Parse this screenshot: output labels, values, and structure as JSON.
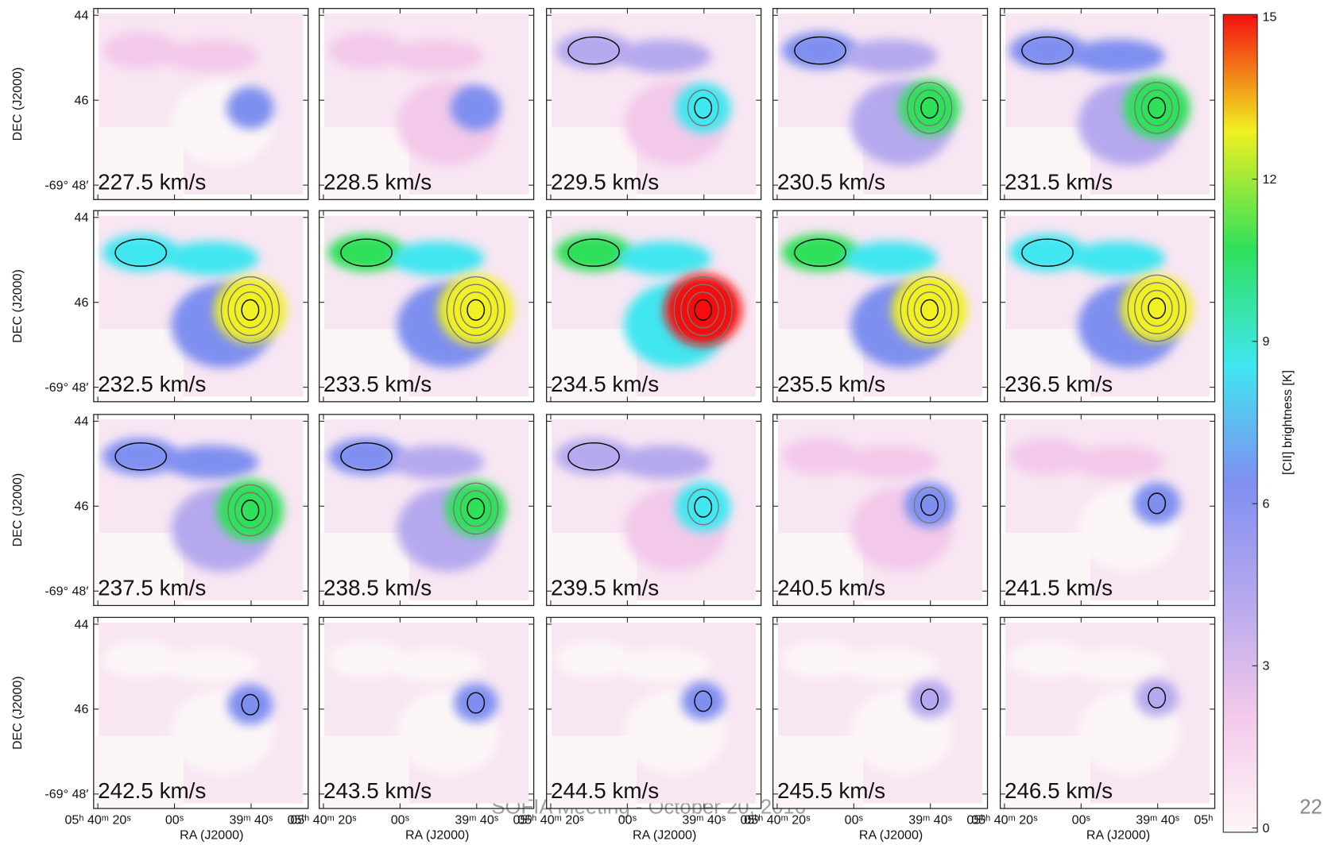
{
  "chart_data": {
    "type": "channel-map",
    "panel_labels": [
      "227.5 km/s",
      "228.5 km/s",
      "229.5 km/s",
      "230.5 km/s",
      "231.5 km/s",
      "232.5 km/s",
      "233.5 km/s",
      "234.5 km/s",
      "235.5 km/s",
      "236.5 km/s",
      "237.5 km/s",
      "238.5 km/s",
      "239.5 km/s",
      "240.5 km/s",
      "241.5 km/s",
      "242.5 km/s",
      "243.5 km/s",
      "244.5 km/s",
      "245.5 km/s",
      "246.5 km/s"
    ],
    "ylabel": "DEC (J2000)",
    "xlabel": "RA (J2000)",
    "ylim": [
      48.34,
      43.84
    ],
    "yticks": [
      44,
      46,
      {
        "value": 48,
        "label": "-69° 48′"
      }
    ],
    "xlim": [
      81.1,
      25.1
    ],
    "xticks": [
      {
        "value": 80,
        "label": "05ʰ 40ᵐ 20ˢ"
      },
      {
        "value": 60,
        "label": "00ˢ"
      },
      {
        "value": 40,
        "label": "39ᵐ 40ˢ"
      },
      {
        "value": 20,
        "label": "05ʰ"
      }
    ],
    "colorbar": {
      "label": "[CII] brightness [K]",
      "lim": [
        0,
        15
      ],
      "ticks": [
        0,
        3,
        6,
        9,
        12,
        15
      ],
      "colors": [
        "#fdf6f7",
        "#f3c9ea",
        "#b6a8ee",
        "#7f8ff0",
        "#3fe6f0",
        "#2fe05a",
        "#f0f020",
        "#f51010"
      ]
    }
  },
  "footer": "SOFIA Meeting - October 20, 2016",
  "page_number": "22"
}
